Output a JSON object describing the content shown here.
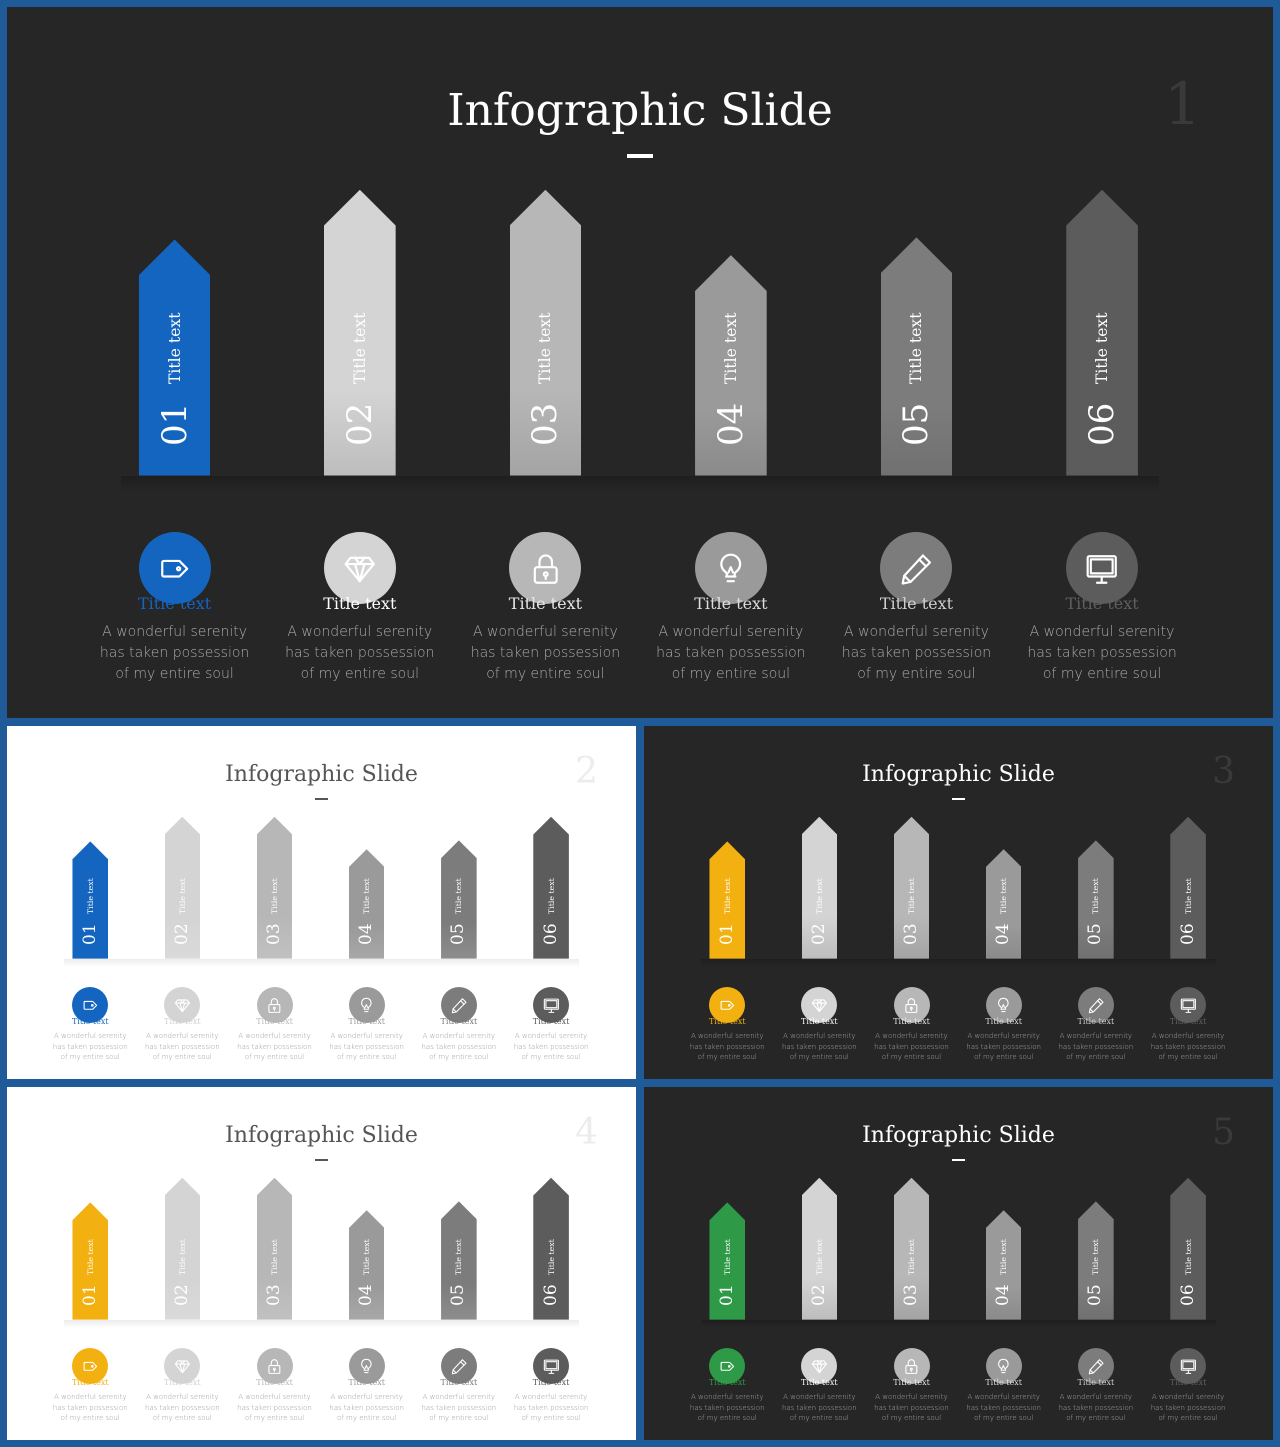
{
  "colors": {
    "frame": "#1f5b99",
    "dark_bg": "#262626",
    "light_bg": "#ffffff",
    "blue": "#1465c0",
    "yellow": "#f3b011",
    "green": "#2e9a48",
    "arrows_gray": [
      "#d4d4d4",
      "#b7b7b7",
      "#9a9a9a",
      "#7c7c7c",
      "#5c5c5c"
    ]
  },
  "slides": [
    {
      "number": "1",
      "theme": "dark",
      "accent": "blue",
      "title": "Infographic Slide",
      "items": [
        {
          "num": "01",
          "label": "Title text",
          "title": "Title text",
          "icon": "tag-icon",
          "desc": "A wonderful serenity has taken possession of my entire soul"
        },
        {
          "num": "02",
          "label": "Title text",
          "title": "Title text",
          "icon": "diamond-icon",
          "desc": "A wonderful serenity has taken possession of my entire soul"
        },
        {
          "num": "03",
          "label": "Title text",
          "title": "Title text",
          "icon": "lock-icon",
          "desc": "A wonderful serenity has taken possession of my entire soul"
        },
        {
          "num": "04",
          "label": "Title text",
          "title": "Title text",
          "icon": "lightbulb-icon",
          "desc": "A wonderful serenity has taken possession of my entire soul"
        },
        {
          "num": "05",
          "label": "Title text",
          "title": "Title text",
          "icon": "pencil-icon",
          "desc": "A wonderful serenity has taken possession of my entire soul"
        },
        {
          "num": "06",
          "label": "Title text",
          "title": "Title text",
          "icon": "monitor-icon",
          "desc": "A wonderful serenity has taken possession of my entire soul"
        }
      ]
    },
    {
      "number": "2",
      "theme": "light",
      "accent": "blue",
      "title": "Infographic Slide",
      "items": [
        {
          "num": "01",
          "label": "Title text",
          "title": "Title text",
          "icon": "tag-icon",
          "desc": "A wonderful serenity has taken possession of my entire soul"
        },
        {
          "num": "02",
          "label": "Title text",
          "title": "Title text",
          "icon": "diamond-icon",
          "desc": "A wonderful serenity has taken possession of my entire soul"
        },
        {
          "num": "03",
          "label": "Title text",
          "title": "Title text",
          "icon": "lock-icon",
          "desc": "A wonderful serenity has taken possession of my entire soul"
        },
        {
          "num": "04",
          "label": "Title text",
          "title": "Title text",
          "icon": "lightbulb-icon",
          "desc": "A wonderful serenity has taken possession of my entire soul"
        },
        {
          "num": "05",
          "label": "Title text",
          "title": "Title text",
          "icon": "pencil-icon",
          "desc": "A wonderful serenity has taken possession of my entire soul"
        },
        {
          "num": "06",
          "label": "Title text",
          "title": "Title text",
          "icon": "monitor-icon",
          "desc": "A wonderful serenity has taken possession of my entire soul"
        }
      ]
    },
    {
      "number": "3",
      "theme": "dark",
      "accent": "yellow",
      "title": "Infographic Slide",
      "items": [
        {
          "num": "01",
          "label": "Title text",
          "title": "Title text",
          "icon": "tag-icon",
          "desc": "A wonderful serenity has taken possession of my entire soul"
        },
        {
          "num": "02",
          "label": "Title text",
          "title": "Title text",
          "icon": "diamond-icon",
          "desc": "A wonderful serenity has taken possession of my entire soul"
        },
        {
          "num": "03",
          "label": "Title text",
          "title": "Title text",
          "icon": "lock-icon",
          "desc": "A wonderful serenity has taken possession of my entire soul"
        },
        {
          "num": "04",
          "label": "Title text",
          "title": "Title text",
          "icon": "lightbulb-icon",
          "desc": "A wonderful serenity has taken possession of my entire soul"
        },
        {
          "num": "05",
          "label": "Title text",
          "title": "Title text",
          "icon": "pencil-icon",
          "desc": "A wonderful serenity has taken possession of my entire soul"
        },
        {
          "num": "06",
          "label": "Title text",
          "title": "Title text",
          "icon": "monitor-icon",
          "desc": "A wonderful serenity has taken possession of my entire soul"
        }
      ]
    },
    {
      "number": "4",
      "theme": "light",
      "accent": "yellow",
      "title": "Infographic Slide",
      "items": [
        {
          "num": "01",
          "label": "Title text",
          "title": "Title text",
          "icon": "tag-icon",
          "desc": "A wonderful serenity has taken possession of my entire soul"
        },
        {
          "num": "02",
          "label": "Title text",
          "title": "Title text",
          "icon": "diamond-icon",
          "desc": "A wonderful serenity has taken possession of my entire soul"
        },
        {
          "num": "03",
          "label": "Title text",
          "title": "Title text",
          "icon": "lock-icon",
          "desc": "A wonderful serenity has taken possession of my entire soul"
        },
        {
          "num": "04",
          "label": "Title text",
          "title": "Title text",
          "icon": "lightbulb-icon",
          "desc": "A wonderful serenity has taken possession of my entire soul"
        },
        {
          "num": "05",
          "label": "Title text",
          "title": "Title text",
          "icon": "pencil-icon",
          "desc": "A wonderful serenity has taken possession of my entire soul"
        },
        {
          "num": "06",
          "label": "Title text",
          "title": "Title text",
          "icon": "monitor-icon",
          "desc": "A wonderful serenity has taken possession of my entire soul"
        }
      ]
    },
    {
      "number": "5",
      "theme": "dark",
      "accent": "green",
      "title": "Infographic Slide",
      "items": [
        {
          "num": "01",
          "label": "Title text",
          "title": "Title text",
          "icon": "tag-icon",
          "desc": "A wonderful serenity has taken possession of my entire soul"
        },
        {
          "num": "02",
          "label": "Title text",
          "title": "Title text",
          "icon": "diamond-icon",
          "desc": "A wonderful serenity has taken possession of my entire soul"
        },
        {
          "num": "03",
          "label": "Title text",
          "title": "Title text",
          "icon": "lock-icon",
          "desc": "A wonderful serenity has taken possession of my entire soul"
        },
        {
          "num": "04",
          "label": "Title text",
          "title": "Title text",
          "icon": "lightbulb-icon",
          "desc": "A wonderful serenity has taken possession of my entire soul"
        },
        {
          "num": "05",
          "label": "Title text",
          "title": "Title text",
          "icon": "pencil-icon",
          "desc": "A wonderful serenity has taken possession of my entire soul"
        },
        {
          "num": "06",
          "label": "Title text",
          "title": "Title text",
          "icon": "monitor-icon",
          "desc": "A wonderful serenity has taken possession of my entire soul"
        }
      ]
    }
  ]
}
